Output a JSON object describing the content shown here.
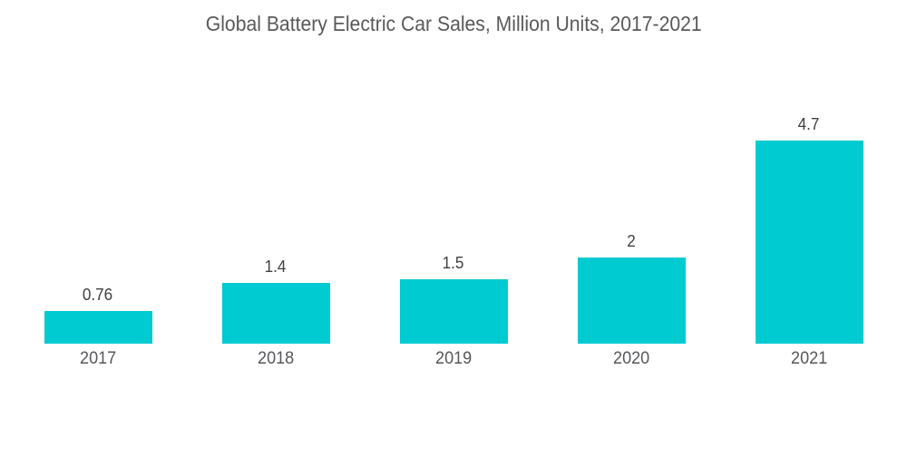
{
  "title": "Global Battery Electric Car Sales, Million Units, 2017-2021",
  "colors": {
    "background": "#FFFFFF",
    "bar": "#00CBD1",
    "title_text": "#58595B",
    "value_text": "#3F4041",
    "year_text": "#55575A"
  },
  "chart_data": {
    "type": "bar",
    "title": "Global Battery Electric Car Sales, Million Units, 2017-2021",
    "categories": [
      "2017",
      "2018",
      "2019",
      "2020",
      "2021"
    ],
    "values": [
      0.76,
      1.4,
      1.5,
      2,
      4.7
    ],
    "value_labels": [
      "0.76",
      "1.4",
      "1.5",
      "2",
      "4.7"
    ],
    "xlabel": "",
    "ylabel": "",
    "ylim": [
      0,
      4.7
    ],
    "grid": false,
    "legend": false,
    "axes_visible": false,
    "bar_color": "#00CBD1"
  }
}
